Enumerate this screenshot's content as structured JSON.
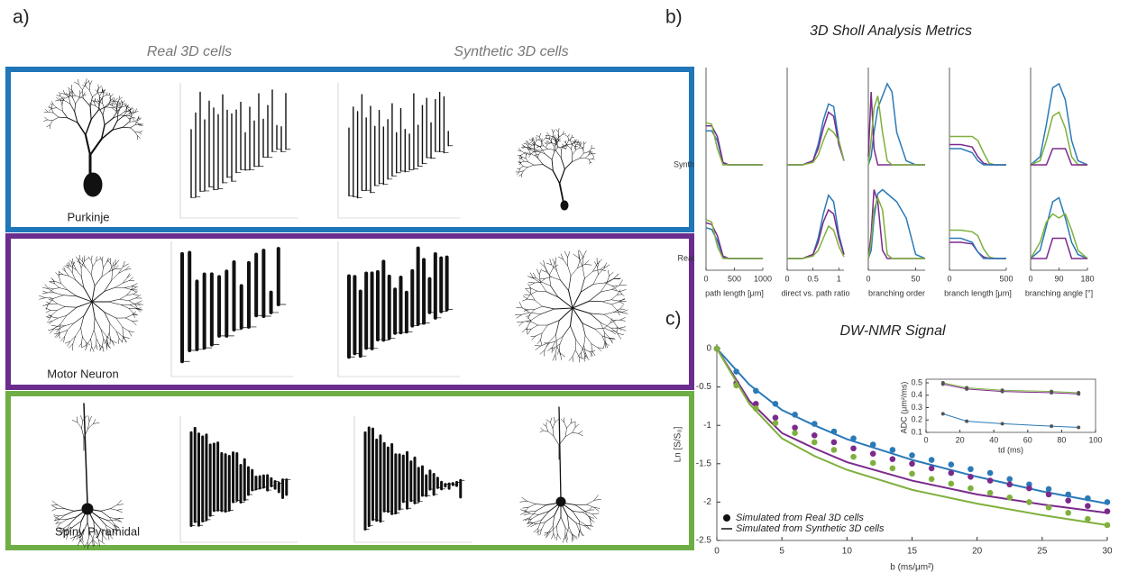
{
  "panel_a": {
    "label": "a)",
    "col_titles": [
      "Real 3D cells",
      "Synthetic 3D cells"
    ],
    "rows": [
      "Purkinje",
      "Motor Neuron",
      "Spiny Pyramidal"
    ]
  },
  "panel_b": {
    "label": "b)",
    "title": "3D Sholl Analysis Metrics",
    "row_labels": [
      "Synth",
      "Real"
    ]
  },
  "panel_c": {
    "label": "c)"
  },
  "chart_data": [
    {
      "type": "sholl",
      "xlabel": "path length [μm]",
      "xlim": [
        0,
        1000
      ],
      "xticks": [
        0,
        500,
        1000
      ],
      "ylim": [
        0,
        1
      ],
      "x": [
        0,
        100,
        200,
        300,
        400,
        600,
        800,
        1000
      ],
      "synth": [
        {
          "color": "#2a7ab8",
          "values": [
            0.42,
            0.42,
            0.3,
            0.02,
            0,
            0,
            0,
            0
          ]
        },
        {
          "color": "#7b2a8c",
          "values": [
            0.48,
            0.48,
            0.35,
            0.03,
            0,
            0,
            0,
            0
          ]
        },
        {
          "color": "#7fb03c",
          "values": [
            0.52,
            0.5,
            0.2,
            0,
            0,
            0,
            0,
            0
          ]
        }
      ],
      "real": [
        {
          "color": "#2a7ab8",
          "values": [
            0.38,
            0.36,
            0.22,
            0.02,
            0,
            0,
            0,
            0
          ]
        },
        {
          "color": "#7b2a8c",
          "values": [
            0.44,
            0.42,
            0.28,
            0.03,
            0,
            0,
            0,
            0
          ]
        },
        {
          "color": "#7fb03c",
          "values": [
            0.48,
            0.45,
            0.15,
            0,
            0,
            0,
            0,
            0
          ]
        }
      ]
    },
    {
      "type": "sholl",
      "xlabel": "direct vs. path ratio",
      "xlim": [
        0,
        1.1
      ],
      "xticks": [
        0,
        0.5,
        1
      ],
      "ylim": [
        0,
        1
      ],
      "x": [
        0,
        0.3,
        0.5,
        0.6,
        0.7,
        0.8,
        0.9,
        1,
        1.1
      ],
      "synth": [
        {
          "color": "#2a7ab8",
          "values": [
            0,
            0,
            0.05,
            0.25,
            0.55,
            0.75,
            0.72,
            0.3,
            0.05
          ]
        },
        {
          "color": "#7b2a8c",
          "values": [
            0,
            0,
            0.05,
            0.2,
            0.45,
            0.65,
            0.6,
            0.25,
            0.05
          ]
        },
        {
          "color": "#7fb03c",
          "values": [
            0,
            0,
            0.03,
            0.12,
            0.3,
            0.45,
            0.4,
            0.3,
            0.05
          ]
        }
      ],
      "real": [
        {
          "color": "#2a7ab8",
          "values": [
            0,
            0,
            0.05,
            0.25,
            0.55,
            0.78,
            0.7,
            0.3,
            0.05
          ]
        },
        {
          "color": "#7b2a8c",
          "values": [
            0,
            0,
            0.05,
            0.2,
            0.45,
            0.6,
            0.55,
            0.25,
            0.05
          ]
        },
        {
          "color": "#7fb03c",
          "values": [
            0,
            0,
            0.03,
            0.1,
            0.25,
            0.4,
            0.35,
            0.15,
            0.02
          ]
        }
      ]
    },
    {
      "type": "sholl",
      "xlabel": "branching order",
      "xlim": [
        0,
        60
      ],
      "xticks": [
        0,
        50
      ],
      "ylim": [
        0,
        1
      ],
      "x": [
        0,
        3,
        6,
        10,
        15,
        20,
        25,
        30,
        40,
        50,
        60
      ],
      "synth": [
        {
          "color": "#2a7ab8",
          "values": [
            0,
            0.1,
            0.4,
            0.7,
            0.85,
            1,
            0.9,
            0.4,
            0.05,
            0,
            0
          ]
        },
        {
          "color": "#7b2a8c",
          "values": [
            0.1,
            0.9,
            0.2,
            0,
            0,
            0,
            0,
            0,
            0,
            0,
            0
          ]
        },
        {
          "color": "#7fb03c",
          "values": [
            0,
            0.3,
            0.7,
            0.85,
            0.4,
            0.05,
            0,
            0,
            0,
            0,
            0
          ]
        }
      ],
      "real": [
        {
          "color": "#2a7ab8",
          "values": [
            0,
            0.1,
            0.5,
            0.8,
            0.85,
            0.8,
            0.75,
            0.7,
            0.5,
            0.05,
            0
          ]
        },
        {
          "color": "#7b2a8c",
          "values": [
            0,
            0.3,
            0.85,
            0.7,
            0.1,
            0,
            0,
            0,
            0,
            0,
            0
          ]
        },
        {
          "color": "#7fb03c",
          "values": [
            0,
            0.2,
            0.6,
            0.75,
            0.6,
            0.05,
            0,
            0,
            0,
            0,
            0
          ]
        }
      ]
    },
    {
      "type": "sholl",
      "xlabel": "branch length [μm]",
      "xlim": [
        0,
        500
      ],
      "xticks": [
        0,
        500
      ],
      "ylim": [
        0,
        1
      ],
      "x": [
        0,
        100,
        200,
        250,
        300,
        350,
        400,
        500
      ],
      "synth": [
        {
          "color": "#7fb03c",
          "values": [
            0.35,
            0.35,
            0.35,
            0.3,
            0.15,
            0.02,
            0,
            0
          ]
        },
        {
          "color": "#7b2a8c",
          "values": [
            0.25,
            0.25,
            0.22,
            0.1,
            0.02,
            0,
            0,
            0
          ]
        },
        {
          "color": "#2a7ab8",
          "values": [
            0.2,
            0.2,
            0.15,
            0.05,
            0,
            0,
            0,
            0
          ]
        }
      ],
      "real": [
        {
          "color": "#7fb03c",
          "values": [
            0.35,
            0.35,
            0.33,
            0.28,
            0.12,
            0.02,
            0,
            0
          ]
        },
        {
          "color": "#7b2a8c",
          "values": [
            0.2,
            0.2,
            0.18,
            0.08,
            0.02,
            0,
            0,
            0
          ]
        },
        {
          "color": "#2a7ab8",
          "values": [
            0.25,
            0.25,
            0.2,
            0.08,
            0,
            0,
            0,
            0
          ]
        }
      ]
    },
    {
      "type": "sholl",
      "xlabel": "branching angle [°]",
      "xlim": [
        0,
        180
      ],
      "xticks": [
        0,
        90,
        180
      ],
      "ylim": [
        0,
        1
      ],
      "x": [
        0,
        30,
        50,
        70,
        90,
        110,
        130,
        150,
        180
      ],
      "synth": [
        {
          "color": "#2a7ab8",
          "values": [
            0,
            0.1,
            0.5,
            0.95,
            1,
            0.8,
            0.3,
            0.05,
            0
          ]
        },
        {
          "color": "#7fb03c",
          "values": [
            0,
            0.05,
            0.3,
            0.6,
            0.65,
            0.45,
            0.1,
            0,
            0
          ]
        },
        {
          "color": "#7b2a8c",
          "values": [
            0,
            0,
            0,
            0.2,
            0.2,
            0.2,
            0,
            0,
            0
          ]
        }
      ],
      "real": [
        {
          "color": "#2a7ab8",
          "values": [
            0,
            0.1,
            0.4,
            0.7,
            0.75,
            0.5,
            0.2,
            0.05,
            0
          ]
        },
        {
          "color": "#7fb03c",
          "values": [
            0,
            0.2,
            0.45,
            0.55,
            0.5,
            0.55,
            0.35,
            0.1,
            0
          ]
        },
        {
          "color": "#7b2a8c",
          "values": [
            0,
            0,
            0,
            0.25,
            0.25,
            0.25,
            0,
            0,
            0
          ]
        }
      ]
    },
    {
      "type": "line",
      "title": "DW-NMR Signal",
      "xlabel": "b (ms/μm²)",
      "ylabel": "Ln [S/S₀]",
      "xlim": [
        0,
        30
      ],
      "ylim": [
        -2.5,
        0
      ],
      "xticks": [
        0,
        5,
        10,
        15,
        20,
        25,
        30
      ],
      "yticks": [
        0,
        -0.5,
        -1,
        -1.5,
        -2,
        -2.5
      ],
      "legend": [
        "Simulated from Real 3D cells",
        "Simulated from Synthetic 3D cells"
      ],
      "x": [
        0,
        1.5,
        3,
        4.5,
        6,
        7.5,
        9,
        10.5,
        12,
        13.5,
        15,
        16.5,
        18,
        19.5,
        21,
        22.5,
        24,
        25.5,
        27,
        28.5,
        30
      ],
      "x_fit": [
        0,
        2.5,
        5,
        7.5,
        10,
        15,
        20,
        25,
        30
      ],
      "series": [
        {
          "color": "#2a7ab8",
          "values": [
            0,
            -0.3,
            -0.55,
            -0.72,
            -0.86,
            -0.98,
            -1.08,
            -1.17,
            -1.25,
            -1.32,
            -1.39,
            -1.45,
            -1.51,
            -1.57,
            -1.62,
            -1.7,
            -1.77,
            -1.83,
            -1.9,
            -1.95,
            -2.0
          ],
          "fit_values": [
            0,
            -0.47,
            -0.8,
            -1.0,
            -1.18,
            -1.45,
            -1.67,
            -1.86,
            -2.02
          ]
        },
        {
          "color": "#7b2a8c",
          "values": [
            0,
            -0.45,
            -0.72,
            -0.9,
            -1.03,
            -1.13,
            -1.22,
            -1.3,
            -1.37,
            -1.44,
            -1.5,
            -1.56,
            -1.62,
            -1.67,
            -1.72,
            -1.77,
            -1.82,
            -1.9,
            -1.98,
            -2.05,
            -2.12
          ],
          "fit_values": [
            0,
            -0.68,
            -1.1,
            -1.3,
            -1.48,
            -1.72,
            -1.9,
            -2.03,
            -2.14
          ]
        },
        {
          "color": "#7fb03c",
          "values": [
            0,
            -0.48,
            -0.78,
            -0.97,
            -1.1,
            -1.22,
            -1.32,
            -1.41,
            -1.49,
            -1.56,
            -1.63,
            -1.7,
            -1.76,
            -1.82,
            -1.88,
            -1.94,
            -2.0,
            -2.07,
            -2.14,
            -2.22,
            -2.3
          ],
          "fit_values": [
            0,
            -0.72,
            -1.17,
            -1.4,
            -1.58,
            -1.84,
            -2.02,
            -2.17,
            -2.3
          ]
        }
      ],
      "inset": {
        "xlabel": "td (ms)",
        "ylabel": "ADC (μm²/ms)",
        "xlim": [
          0,
          100
        ],
        "ylim": [
          0.1,
          0.5
        ],
        "xticks": [
          0,
          20,
          40,
          60,
          80,
          100
        ],
        "yticks": [
          0.1,
          0.2,
          0.3,
          0.4,
          0.5
        ],
        "x": [
          10,
          24,
          45,
          74,
          90
        ],
        "series": [
          {
            "color": "#7b2a8c",
            "values": [
              0.49,
              0.45,
              0.43,
              0.42,
              0.41
            ]
          },
          {
            "color": "#7fb03c",
            "values": [
              0.5,
              0.46,
              0.44,
              0.43,
              0.42
            ]
          },
          {
            "color": "#2a7ab8",
            "values": [
              0.25,
              0.19,
              0.17,
              0.15,
              0.14
            ]
          }
        ]
      }
    }
  ]
}
